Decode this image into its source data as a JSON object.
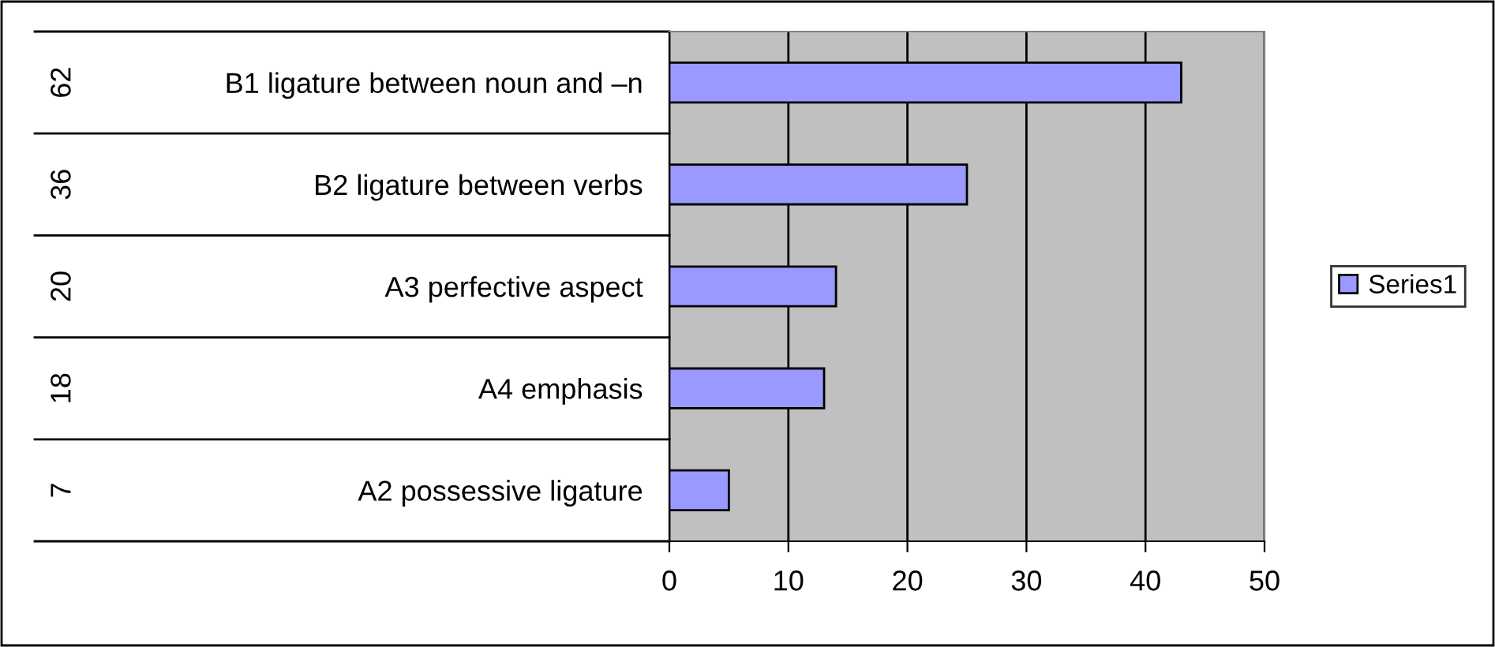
{
  "chart_data": {
    "type": "bar",
    "orientation": "horizontal",
    "categories": [
      "B1 ligature between noun and –n",
      "B2 ligature between verbs",
      "A3 perfective aspect",
      "A4 emphasis",
      "A2 possessive ligature"
    ],
    "series": [
      {
        "name": "Series1",
        "color": "#9999ff",
        "values": [
          43,
          25,
          14,
          13,
          5
        ]
      }
    ],
    "annotations": [
      "62",
      "36",
      "20",
      "18",
      "7"
    ],
    "xlim": [
      0,
      50
    ],
    "xticks": [
      0,
      10,
      20,
      30,
      40,
      50
    ],
    "grid": "x",
    "legend": "right"
  }
}
